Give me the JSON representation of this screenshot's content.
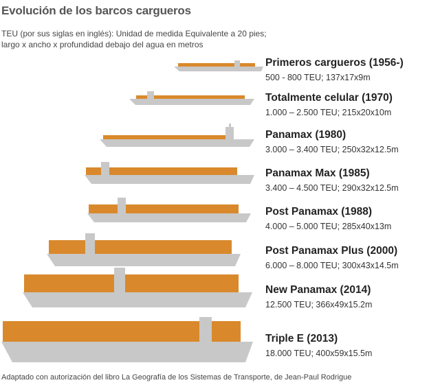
{
  "header": {
    "title": "Evolución de los barcos cargueros",
    "subtitle_line1": "TEU (por sus siglas en inglés): Unidad de medida Equivalente a 20 pies;",
    "subtitle_line2": "largo x ancho x profundidad debajo del agua en metros"
  },
  "colors": {
    "hull": "#c8c8c8",
    "cargo": "#d9892c",
    "text": "#333333"
  },
  "ships": [
    {
      "name": "Primeros cargueros (1956-)",
      "spec": "500 - 800 TEU; 137x17x9m"
    },
    {
      "name": "Totalmente celular (1970)",
      "spec": "1.000 – 2.500 TEU; 215x20x10m"
    },
    {
      "name": "Panamax (1980)",
      "spec": "3.000 – 3.400 TEU; 250x32x12.5m"
    },
    {
      "name": "Panamax Max (1985)",
      "spec": "3.400 – 4.500 TEU; 290x32x12.5m"
    },
    {
      "name": "Post Panamax (1988)",
      "spec": "4.000 – 5.000 TEU; 285x40x13m"
    },
    {
      "name": "Post Panamax Plus (2000)",
      "spec": "6.000 – 8.000 TEU; 300x43x14.5m"
    },
    {
      "name": "New Panamax (2014)",
      "spec": "12.500 TEU; 366x49x15.2m"
    },
    {
      "name": "Triple E (2013)",
      "spec": "18.000 TEU; 400x59x15.5m"
    }
  ],
  "footer": "Adaptado con autorización del libro La Geografía de los Sistemas de Transporte, de Jean-Paul Rodrigue"
}
